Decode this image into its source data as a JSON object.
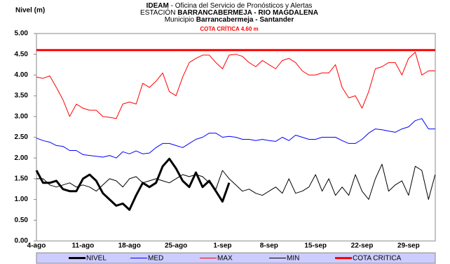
{
  "chart_data": {
    "type": "line",
    "title": [
      [
        {
          "text": "IDEAM",
          "bold": true
        },
        {
          "text": " - Oficina del Servicio de Pronósticos y Alertas",
          "bold": false
        }
      ],
      [
        {
          "text": "ESTACIÓN ",
          "bold": false
        },
        {
          "text": "BARRANCABERMEJA - RIO MAGDALENA",
          "bold": true
        }
      ],
      [
        {
          "text": "Municipio ",
          "bold": false
        },
        {
          "text": "Barrancabermeja - Santander",
          "bold": true
        }
      ]
    ],
    "annotation": "COTA CRÍTICA  4.60 m",
    "annotation_color": "#ff0000",
    "ylabel": "Nivel (m)",
    "categories": [
      "4-ago",
      null,
      null,
      null,
      null,
      null,
      null,
      "11-ago",
      null,
      null,
      null,
      null,
      null,
      null,
      "18-ago",
      null,
      null,
      null,
      null,
      null,
      null,
      "25-ago",
      null,
      null,
      null,
      null,
      null,
      null,
      "1-sep",
      null,
      null,
      null,
      null,
      null,
      null,
      "8-sep",
      null,
      null,
      null,
      null,
      null,
      null,
      "15-sep",
      null,
      null,
      null,
      null,
      null,
      null,
      "22-sep",
      null,
      null,
      null,
      null,
      null,
      null,
      "29-sep",
      null,
      null,
      null,
      null
    ],
    "ylim": [
      0,
      5
    ],
    "yticks": [
      {
        "value": 0,
        "label": "0.00"
      },
      {
        "value": 0.5,
        "label": "0.50"
      },
      {
        "value": 1,
        "label": "1.00"
      },
      {
        "value": 1.5,
        "label": "1.50"
      },
      {
        "value": 2,
        "label": "2.00"
      },
      {
        "value": 2.5,
        "label": "2.50"
      },
      {
        "value": 3,
        "label": "3.00"
      },
      {
        "value": 3.5,
        "label": "3.50"
      },
      {
        "value": 4,
        "label": "4.00"
      },
      {
        "value": 4.5,
        "label": "4.50"
      },
      {
        "value": 5,
        "label": "5.00"
      }
    ],
    "grid": false,
    "legend": "bottom",
    "series": [
      {
        "name": "NIVEL",
        "color": "#000000",
        "width": 3,
        "values": [
          1.7,
          1.4,
          1.4,
          1.45,
          1.25,
          1.2,
          1.2,
          1.5,
          1.6,
          1.45,
          1.15,
          1.0,
          0.85,
          0.9,
          0.75,
          1.1,
          1.4,
          1.3,
          1.4,
          1.8,
          1.98,
          1.75,
          1.45,
          1.3,
          1.65,
          1.3,
          1.45,
          1.2,
          0.95,
          1.4,
          null,
          null,
          null,
          null,
          null,
          null,
          null,
          null,
          null,
          null,
          null,
          null,
          null,
          null,
          null,
          null,
          null,
          null,
          null,
          null,
          null,
          null,
          null,
          null,
          null,
          null,
          null,
          null,
          null,
          null,
          null
        ]
      },
      {
        "name": "MED",
        "color": "#0000ff",
        "width": 1,
        "values": [
          2.48,
          2.42,
          2.38,
          2.3,
          2.28,
          2.18,
          2.18,
          2.08,
          2.06,
          2.04,
          2.02,
          2.06,
          2.0,
          2.15,
          2.1,
          2.17,
          2.1,
          2.12,
          2.25,
          2.35,
          2.35,
          2.3,
          2.25,
          2.35,
          2.45,
          2.5,
          2.6,
          2.6,
          2.5,
          2.52,
          2.5,
          2.45,
          2.45,
          2.42,
          2.45,
          2.42,
          2.4,
          2.5,
          2.42,
          2.55,
          2.5,
          2.45,
          2.45,
          2.5,
          2.5,
          2.5,
          2.42,
          2.35,
          2.35,
          2.45,
          2.6,
          2.7,
          2.68,
          2.65,
          2.62,
          2.7,
          2.75,
          2.9,
          2.95,
          2.7,
          2.7
        ]
      },
      {
        "name": "MAX",
        "color": "#ff0000",
        "width": 1,
        "values": [
          3.95,
          3.92,
          3.98,
          3.7,
          3.4,
          3.0,
          3.3,
          3.2,
          3.15,
          3.15,
          3.0,
          2.98,
          2.95,
          3.3,
          3.35,
          3.3,
          3.8,
          3.7,
          3.85,
          4.05,
          3.6,
          3.5,
          3.95,
          4.3,
          4.4,
          4.48,
          4.48,
          4.3,
          4.15,
          4.48,
          4.5,
          4.45,
          4.3,
          4.2,
          4.35,
          4.25,
          4.15,
          4.35,
          4.4,
          4.3,
          4.1,
          4.0,
          4.0,
          4.05,
          4.05,
          4.25,
          3.7,
          3.45,
          3.5,
          3.2,
          3.6,
          4.15,
          4.2,
          4.3,
          4.3,
          4.0,
          4.4,
          4.55,
          4.0,
          4.1,
          4.1
        ]
      },
      {
        "name": "MIN",
        "color": "#000000",
        "width": 1,
        "values": [
          1.5,
          1.5,
          1.35,
          1.3,
          1.35,
          1.4,
          1.3,
          1.35,
          1.3,
          1.2,
          1.35,
          1.5,
          1.45,
          1.3,
          1.5,
          1.55,
          1.4,
          1.45,
          1.5,
          1.45,
          1.4,
          1.5,
          1.6,
          1.55,
          1.6,
          1.55,
          1.4,
          1.25,
          1.7,
          1.5,
          1.35,
          1.2,
          1.25,
          1.15,
          1.1,
          1.2,
          1.3,
          1.15,
          1.5,
          1.15,
          1.2,
          1.3,
          1.6,
          1.2,
          1.5,
          1.1,
          1.3,
          1.1,
          1.6,
          1.2,
          1.0,
          1.5,
          1.85,
          1.2,
          1.35,
          1.45,
          1.1,
          1.8,
          1.7,
          1.0,
          1.6
        ]
      },
      {
        "name": "COTA CRITICA",
        "color": "#ff0000",
        "width": 3,
        "values": [
          4.6,
          4.6,
          4.6,
          4.6,
          4.6,
          4.6,
          4.6,
          4.6,
          4.6,
          4.6,
          4.6,
          4.6,
          4.6,
          4.6,
          4.6,
          4.6,
          4.6,
          4.6,
          4.6,
          4.6,
          4.6,
          4.6,
          4.6,
          4.6,
          4.6,
          4.6,
          4.6,
          4.6,
          4.6,
          4.6,
          4.6,
          4.6,
          4.6,
          4.6,
          4.6,
          4.6,
          4.6,
          4.6,
          4.6,
          4.6,
          4.6,
          4.6,
          4.6,
          4.6,
          4.6,
          4.6,
          4.6,
          4.6,
          4.6,
          4.6,
          4.6,
          4.6,
          4.6,
          4.6,
          4.6,
          4.6,
          4.6,
          4.6,
          4.6,
          4.6,
          4.6
        ]
      }
    ]
  }
}
